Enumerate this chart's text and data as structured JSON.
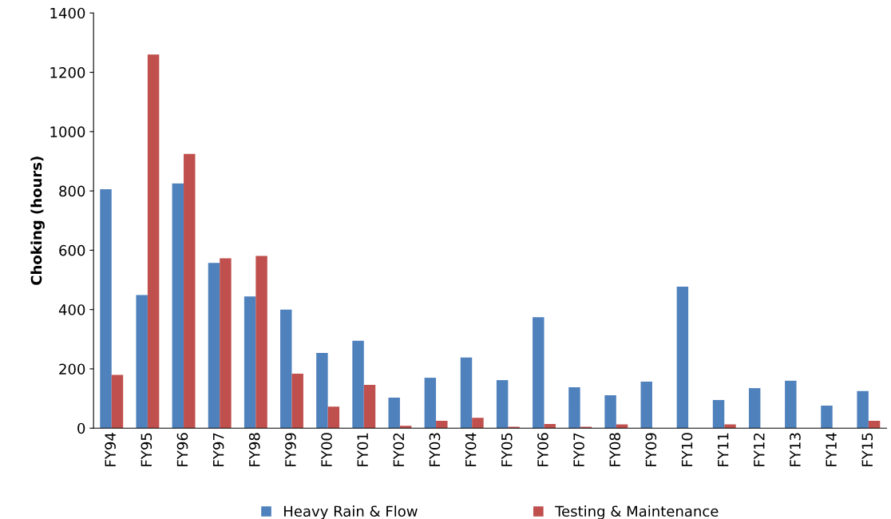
{
  "chart_data": {
    "type": "bar",
    "ylabel": "Choking (hours)",
    "categories": [
      "FY94",
      "FY95",
      "FY96",
      "FY97",
      "FY98",
      "FY99",
      "FY00",
      "FY01",
      "FY02",
      "FY03",
      "FY04",
      "FY05",
      "FY06",
      "FY07",
      "FY08",
      "FY09",
      "FY10",
      "FY11",
      "FY12",
      "FY13",
      "FY14",
      "FY15"
    ],
    "series": [
      {
        "name": "Heavy Rain & Flow",
        "color": "#4f81bd",
        "values": [
          806,
          449,
          825,
          557,
          444,
          400,
          254,
          295,
          103,
          170,
          238,
          162,
          374,
          138,
          111,
          157,
          477,
          95,
          135,
          160,
          76,
          125
        ]
      },
      {
        "name": "Testing & Maintenance",
        "color": "#c0504d",
        "values": [
          180,
          1260,
          925,
          573,
          581,
          184,
          73,
          146,
          8,
          25,
          35,
          5,
          14,
          5,
          13,
          0,
          0,
          13,
          null,
          0,
          0,
          25
        ]
      }
    ],
    "ylim": [
      0,
      1400
    ],
    "yticks": [
      0,
      200,
      400,
      600,
      800,
      1000,
      1200,
      1400
    ],
    "grid": false,
    "legend": "bottom"
  }
}
